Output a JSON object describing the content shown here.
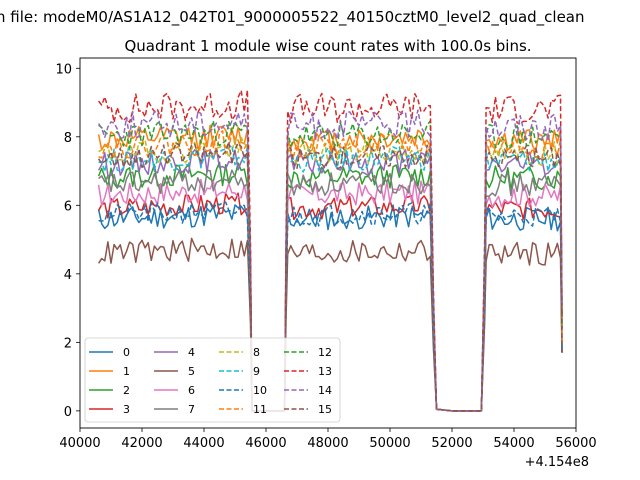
{
  "chart_data": {
    "type": "line",
    "suptitle": "n file: modeM0/AS1A12_042T01_9000005522_40150cztM0_level2_quad_clean",
    "title": "Quadrant 1 module wise count rates with 100.0s bins.",
    "xlabel": "",
    "ylabel": "",
    "x_offset_label": "+4.154e8",
    "xlim": [
      40000,
      56000
    ],
    "ylim": [
      -0.5,
      10.3
    ],
    "xticks": [
      40000,
      42000,
      44000,
      46000,
      48000,
      50000,
      52000,
      54000,
      56000
    ],
    "xtick_labels": [
      "40000",
      "42000",
      "44000",
      "46000",
      "48000",
      "50000",
      "52000",
      "54000",
      "56000"
    ],
    "yticks": [
      0,
      2,
      4,
      6,
      8,
      10
    ],
    "ytick_labels": [
      "0",
      "2",
      "4",
      "6",
      "8",
      "10"
    ],
    "bin_seconds": 100,
    "observation_segments": [
      [
        40600,
        45400
      ],
      [
        46700,
        51300
      ],
      [
        53100,
        55500
      ]
    ],
    "gaps": [
      [
        45500,
        46600
      ],
      [
        51400,
        53000
      ]
    ],
    "legend_location": "lower-left",
    "legend_columns": 4,
    "series": [
      {
        "name": "0",
        "color": "#1f77b4",
        "dash": "solid",
        "level": 5.6,
        "noise": 0.22,
        "seed": 11
      },
      {
        "name": "1",
        "color": "#ff7f0e",
        "dash": "solid",
        "level": 7.9,
        "noise": 0.22,
        "seed": 12
      },
      {
        "name": "2",
        "color": "#2ca02c",
        "dash": "solid",
        "level": 6.8,
        "noise": 0.22,
        "seed": 13
      },
      {
        "name": "3",
        "color": "#d62728",
        "dash": "solid",
        "level": 5.9,
        "noise": 0.2,
        "seed": 14
      },
      {
        "name": "4",
        "color": "#9467bd",
        "dash": "solid",
        "level": 7.2,
        "noise": 0.22,
        "seed": 15
      },
      {
        "name": "5",
        "color": "#8c564b",
        "dash": "solid",
        "level": 4.6,
        "noise": 0.22,
        "seed": 16
      },
      {
        "name": "6",
        "color": "#e377c2",
        "dash": "solid",
        "level": 6.3,
        "noise": 0.22,
        "seed": 17
      },
      {
        "name": "7",
        "color": "#7f7f7f",
        "dash": "solid",
        "level": 6.6,
        "noise": 0.22,
        "seed": 18
      },
      {
        "name": "8",
        "color": "#bcbd22",
        "dash": "dashed",
        "level": 7.5,
        "noise": 0.22,
        "seed": 19
      },
      {
        "name": "9",
        "color": "#17becf",
        "dash": "dashed",
        "level": 7.3,
        "noise": 0.22,
        "seed": 20
      },
      {
        "name": "10",
        "color": "#1f77b4",
        "dash": "dashed",
        "level": 5.7,
        "noise": 0.2,
        "seed": 21
      },
      {
        "name": "11",
        "color": "#ff7f0e",
        "dash": "dashed",
        "level": 7.7,
        "noise": 0.22,
        "seed": 22
      },
      {
        "name": "12",
        "color": "#2ca02c",
        "dash": "dashed",
        "level": 8.0,
        "noise": 0.24,
        "seed": 23
      },
      {
        "name": "13",
        "color": "#d62728",
        "dash": "dashed",
        "level": 8.8,
        "noise": 0.28,
        "seed": 24
      },
      {
        "name": "14",
        "color": "#9467bd",
        "dash": "dashed",
        "level": 8.3,
        "noise": 0.26,
        "seed": 25
      },
      {
        "name": "15",
        "color": "#8c564b",
        "dash": "dashed",
        "level": 7.4,
        "noise": 0.22,
        "seed": 26
      }
    ]
  }
}
